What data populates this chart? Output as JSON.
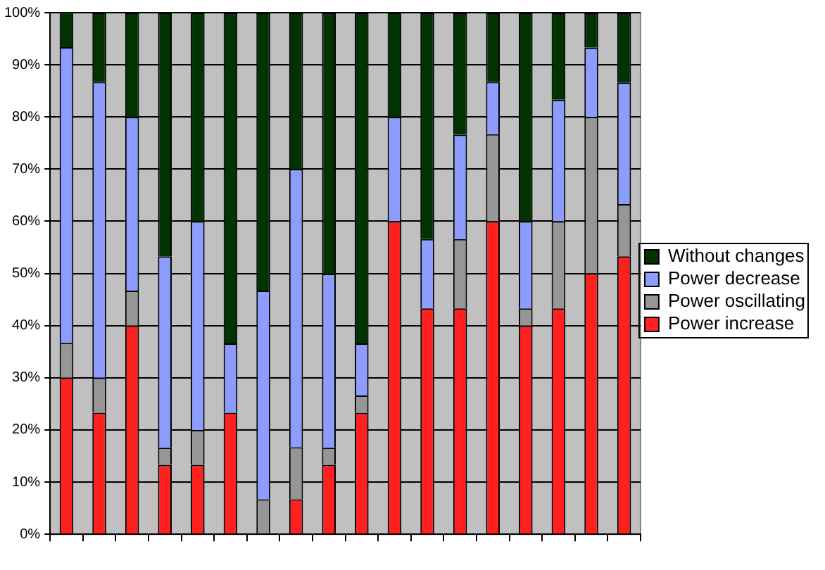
{
  "chart_data": {
    "type": "bar",
    "stacked": true,
    "categories": [
      null,
      null,
      null,
      null,
      null,
      null,
      null,
      null,
      null,
      null,
      null,
      null,
      null,
      null,
      null,
      null,
      null,
      null
    ],
    "series": [
      {
        "name": "Power increase",
        "color": "#ff2020",
        "values": [
          30,
          23.3,
          40,
          13.3,
          13.3,
          23.3,
          0,
          6.7,
          13.3,
          23.3,
          60,
          43.3,
          43.3,
          60,
          40,
          43.3,
          50,
          53.3
        ]
      },
      {
        "name": "Power oscillating",
        "color": "#969696",
        "values": [
          6.7,
          6.7,
          6.7,
          3.3,
          6.7,
          0,
          6.7,
          10,
          3.3,
          3.3,
          0,
          0,
          13.3,
          16.7,
          3.3,
          16.7,
          30,
          10
        ]
      },
      {
        "name": "Power decrease",
        "color": "#8c9cff",
        "values": [
          56.7,
          56.7,
          33.3,
          36.7,
          40,
          13.3,
          40,
          53.3,
          33.3,
          10,
          20,
          13.3,
          20,
          10,
          16.7,
          23.3,
          13.3,
          23.3
        ]
      },
      {
        "name": "Without changes",
        "color": "#003300",
        "values": [
          6.7,
          13.3,
          20,
          46.7,
          40,
          63.3,
          53.3,
          30,
          50,
          63.3,
          20,
          43.3,
          23.3,
          13.3,
          40,
          16.7,
          6.7,
          13.3
        ]
      }
    ],
    "ylim": [
      0,
      100
    ],
    "yticks": [
      {
        "value": 0,
        "label": "0%"
      },
      {
        "value": 10,
        "label": "10%"
      },
      {
        "value": 20,
        "label": "20%"
      },
      {
        "value": 30,
        "label": "30%"
      },
      {
        "value": 40,
        "label": "40%"
      },
      {
        "value": 50,
        "label": "50%"
      },
      {
        "value": 60,
        "label": "60%"
      },
      {
        "value": 70,
        "label": "70%"
      },
      {
        "value": 80,
        "label": "80%"
      },
      {
        "value": 90,
        "label": "90%"
      },
      {
        "value": 100,
        "label": "100%"
      }
    ],
    "grid": "y",
    "legend": "right"
  }
}
